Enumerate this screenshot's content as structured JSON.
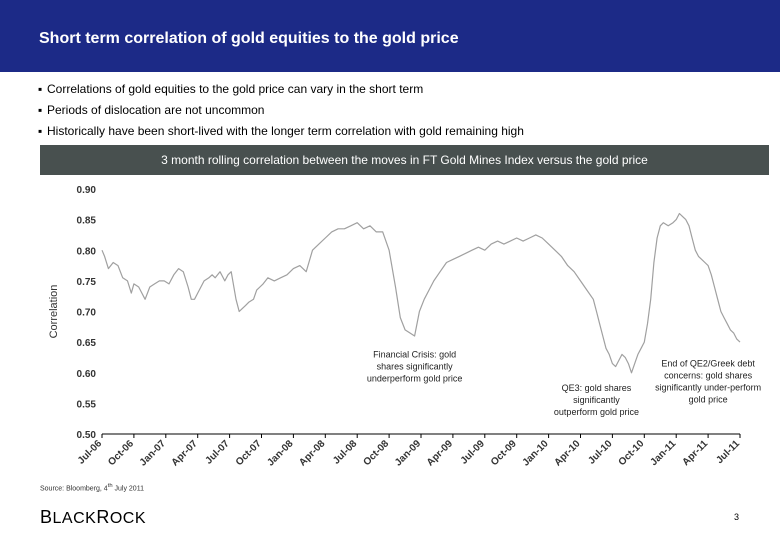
{
  "slide": {
    "title": "Short term correlation of gold equities to the gold price",
    "bullets": [
      "Correlations of gold equities to the gold price can vary in the short term",
      "Periods of dislocation are not uncommon",
      "Historically have been short-lived with the longer term correlation with gold remaining high"
    ],
    "bullet_symbol": "▪",
    "source_prefix": "Source: Bloomberg, 4",
    "source_sup": "th",
    "source_suffix": " July 2011",
    "logo_first": "B",
    "logo_rest1": "LACK",
    "logo_second": "R",
    "logo_rest2": "OCK",
    "page_number": "3",
    "colors": {
      "header": "#1c2a87",
      "title_bar": "#48504f",
      "line": "#a0a0a0"
    }
  },
  "chart_data": {
    "type": "line",
    "title": "3 month rolling correlation between the moves in FT Gold Mines Index versus the gold price",
    "xlabel": "",
    "ylabel": "Correlation",
    "ylim": [
      0.5,
      0.9
    ],
    "y_ticks": [
      "0.90",
      "0.85",
      "0.80",
      "0.75",
      "0.70",
      "0.65",
      "0.60",
      "0.55",
      "0.50"
    ],
    "x_ticks": [
      "Jul-06",
      "Oct-06",
      "Jan-07",
      "Apr-07",
      "Jul-07",
      "Oct-07",
      "Jan-08",
      "Apr-08",
      "Jul-08",
      "Oct-08",
      "Jan-09",
      "Apr-09",
      "Jul-09",
      "Oct-09",
      "Jan-10",
      "Apr-10",
      "Jul-10",
      "Oct-10",
      "Jan-11",
      "Apr-11",
      "Jul-11"
    ],
    "x_range": [
      0,
      20
    ],
    "series": [
      {
        "name": "3 month rolling correlation",
        "points": [
          [
            0.0,
            0.8
          ],
          [
            0.08,
            0.79
          ],
          [
            0.2,
            0.77
          ],
          [
            0.35,
            0.78
          ],
          [
            0.5,
            0.775
          ],
          [
            0.65,
            0.755
          ],
          [
            0.8,
            0.75
          ],
          [
            0.92,
            0.73
          ],
          [
            1.0,
            0.745
          ],
          [
            1.15,
            0.74
          ],
          [
            1.35,
            0.72
          ],
          [
            1.5,
            0.74
          ],
          [
            1.65,
            0.745
          ],
          [
            1.8,
            0.75
          ],
          [
            1.95,
            0.75
          ],
          [
            2.1,
            0.745
          ],
          [
            2.25,
            0.76
          ],
          [
            2.4,
            0.77
          ],
          [
            2.55,
            0.765
          ],
          [
            2.7,
            0.74
          ],
          [
            2.8,
            0.72
          ],
          [
            2.9,
            0.72
          ],
          [
            3.0,
            0.73
          ],
          [
            3.1,
            0.74
          ],
          [
            3.2,
            0.75
          ],
          [
            3.35,
            0.755
          ],
          [
            3.45,
            0.76
          ],
          [
            3.55,
            0.755
          ],
          [
            3.7,
            0.765
          ],
          [
            3.85,
            0.75
          ],
          [
            3.95,
            0.76
          ],
          [
            4.05,
            0.765
          ],
          [
            4.2,
            0.72
          ],
          [
            4.3,
            0.7
          ],
          [
            4.4,
            0.705
          ],
          [
            4.5,
            0.71
          ],
          [
            4.6,
            0.715
          ],
          [
            4.75,
            0.72
          ],
          [
            4.85,
            0.735
          ],
          [
            4.95,
            0.74
          ],
          [
            5.05,
            0.745
          ],
          [
            5.2,
            0.755
          ],
          [
            5.4,
            0.75
          ],
          [
            5.6,
            0.755
          ],
          [
            5.8,
            0.76
          ],
          [
            6.0,
            0.77
          ],
          [
            6.2,
            0.775
          ],
          [
            6.4,
            0.765
          ],
          [
            6.6,
            0.8
          ],
          [
            6.8,
            0.81
          ],
          [
            7.0,
            0.82
          ],
          [
            7.2,
            0.83
          ],
          [
            7.4,
            0.835
          ],
          [
            7.6,
            0.835
          ],
          [
            7.8,
            0.84
          ],
          [
            8.0,
            0.845
          ],
          [
            8.2,
            0.835
          ],
          [
            8.4,
            0.84
          ],
          [
            8.6,
            0.83
          ],
          [
            8.8,
            0.83
          ],
          [
            9.0,
            0.8
          ],
          [
            9.2,
            0.74
          ],
          [
            9.35,
            0.69
          ],
          [
            9.5,
            0.67
          ],
          [
            9.65,
            0.665
          ],
          [
            9.8,
            0.66
          ],
          [
            9.95,
            0.7
          ],
          [
            10.1,
            0.72
          ],
          [
            10.25,
            0.735
          ],
          [
            10.4,
            0.75
          ],
          [
            10.6,
            0.765
          ],
          [
            10.8,
            0.78
          ],
          [
            11.0,
            0.785
          ],
          [
            11.2,
            0.79
          ],
          [
            11.4,
            0.795
          ],
          [
            11.6,
            0.8
          ],
          [
            11.8,
            0.805
          ],
          [
            12.0,
            0.8
          ],
          [
            12.2,
            0.81
          ],
          [
            12.4,
            0.815
          ],
          [
            12.6,
            0.81
          ],
          [
            12.8,
            0.815
          ],
          [
            13.0,
            0.82
          ],
          [
            13.2,
            0.815
          ],
          [
            13.4,
            0.82
          ],
          [
            13.6,
            0.825
          ],
          [
            13.8,
            0.82
          ],
          [
            14.0,
            0.81
          ],
          [
            14.2,
            0.8
          ],
          [
            14.4,
            0.79
          ],
          [
            14.6,
            0.775
          ],
          [
            14.8,
            0.765
          ],
          [
            15.0,
            0.75
          ],
          [
            15.2,
            0.735
          ],
          [
            15.4,
            0.72
          ],
          [
            15.5,
            0.7
          ],
          [
            15.6,
            0.68
          ],
          [
            15.7,
            0.66
          ],
          [
            15.8,
            0.64
          ],
          [
            15.9,
            0.63
          ],
          [
            16.0,
            0.615
          ],
          [
            16.1,
            0.61
          ],
          [
            16.2,
            0.62
          ],
          [
            16.3,
            0.63
          ],
          [
            16.4,
            0.625
          ],
          [
            16.5,
            0.615
          ],
          [
            16.6,
            0.6
          ],
          [
            16.7,
            0.615
          ],
          [
            16.8,
            0.63
          ],
          [
            16.9,
            0.64
          ],
          [
            17.0,
            0.65
          ],
          [
            17.1,
            0.68
          ],
          [
            17.2,
            0.72
          ],
          [
            17.3,
            0.78
          ],
          [
            17.4,
            0.82
          ],
          [
            17.5,
            0.84
          ],
          [
            17.6,
            0.845
          ],
          [
            17.75,
            0.84
          ],
          [
            17.9,
            0.845
          ],
          [
            18.0,
            0.85
          ],
          [
            18.1,
            0.86
          ],
          [
            18.2,
            0.855
          ],
          [
            18.3,
            0.85
          ],
          [
            18.4,
            0.84
          ],
          [
            18.5,
            0.82
          ],
          [
            18.6,
            0.8
          ],
          [
            18.7,
            0.79
          ],
          [
            18.8,
            0.785
          ],
          [
            18.9,
            0.78
          ],
          [
            19.0,
            0.775
          ],
          [
            19.1,
            0.76
          ],
          [
            19.2,
            0.74
          ],
          [
            19.3,
            0.72
          ],
          [
            19.4,
            0.7
          ],
          [
            19.5,
            0.69
          ],
          [
            19.6,
            0.68
          ],
          [
            19.7,
            0.67
          ],
          [
            19.8,
            0.665
          ],
          [
            19.9,
            0.655
          ],
          [
            20.0,
            0.65
          ]
        ]
      }
    ],
    "annotations": [
      {
        "name": "annotation-financial-crisis",
        "x": 9.8,
        "y": 0.625,
        "lines": [
          "Financial Crisis: gold",
          "shares significantly",
          "underperform gold price"
        ]
      },
      {
        "name": "annotation-qe3",
        "x": 15.5,
        "y": 0.57,
        "lines": [
          "QE3: gold shares",
          "significantly",
          "outperform gold price"
        ]
      },
      {
        "name": "annotation-qe2-greek",
        "x": 19.0,
        "y": 0.61,
        "lines": [
          "End of QE2/Greek debt",
          "concerns: gold shares",
          "significantly under-perform",
          "gold price"
        ]
      }
    ],
    "grid": false
  }
}
